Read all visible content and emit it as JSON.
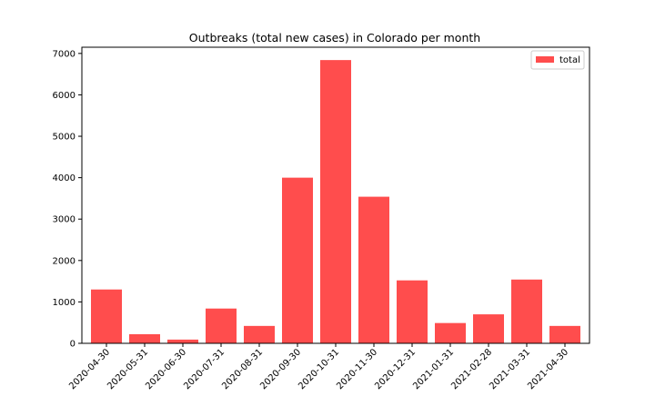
{
  "chart_data": {
    "type": "bar",
    "title": "Outbreaks (total new cases) in Colorado per month",
    "xlabel": "",
    "ylabel": "",
    "categories": [
      "2020-04-30",
      "2020-05-31",
      "2020-06-30",
      "2020-07-31",
      "2020-08-31",
      "2020-09-30",
      "2020-10-31",
      "2020-11-30",
      "2020-12-31",
      "2021-01-31",
      "2021-02-28",
      "2021-03-31",
      "2021-04-30"
    ],
    "series": [
      {
        "name": "total",
        "color": "#ff4d4d",
        "values": [
          1300,
          220,
          90,
          840,
          420,
          4000,
          6840,
          3540,
          1520,
          490,
          700,
          1540,
          420
        ]
      }
    ],
    "ylim": [
      0,
      7150
    ],
    "yticks": [
      0,
      1000,
      2000,
      3000,
      4000,
      5000,
      6000,
      7000
    ],
    "grid": false,
    "legend_position": "top-right"
  }
}
